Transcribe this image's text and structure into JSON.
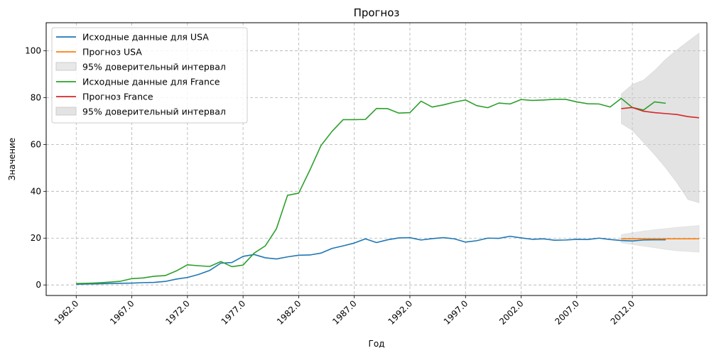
{
  "chart_data": {
    "type": "line",
    "title": "Прогноз",
    "xlabel": "Год",
    "ylabel": "Значение",
    "xlim": [
      1959.3,
      2018.7
    ],
    "ylim": [
      -4.5,
      112
    ],
    "grid": true,
    "legend_position": "top-left",
    "x_ticks": [
      1962,
      1967,
      1972,
      1977,
      1982,
      1987,
      1992,
      1997,
      2002,
      2007,
      2012
    ],
    "x_tick_labels": [
      "1962.0",
      "1967.0",
      "1972.0",
      "1977.0",
      "1982.0",
      "1987.0",
      "1992.0",
      "1997.0",
      "2002.0",
      "2007.0",
      "2012.0"
    ],
    "y_ticks": [
      0,
      20,
      40,
      60,
      80,
      100
    ],
    "y_tick_labels": [
      "0",
      "20",
      "40",
      "60",
      "80",
      "100"
    ],
    "series": [
      {
        "name": "Исходные данные для USA",
        "kind": "line",
        "color": "#1f77b4",
        "x": [
          1962,
          1963,
          1964,
          1965,
          1966,
          1967,
          1968,
          1969,
          1970,
          1971,
          1972,
          1973,
          1974,
          1975,
          1976,
          1977,
          1978,
          1979,
          1980,
          1981,
          1982,
          1983,
          1984,
          1985,
          1986,
          1987,
          1988,
          1989,
          1990,
          1991,
          1992,
          1993,
          1994,
          1995,
          1996,
          1997,
          1998,
          1999,
          2000,
          2001,
          2002,
          2003,
          2004,
          2005,
          2006,
          2007,
          2008,
          2009,
          2010,
          2011,
          2012,
          2013,
          2014,
          2015
        ],
        "values": [
          0.3,
          0.4,
          0.5,
          0.6,
          0.7,
          0.8,
          1.0,
          1.1,
          1.5,
          2.5,
          3.2,
          4.5,
          6.2,
          9.3,
          9.6,
          12.2,
          13.0,
          11.6,
          11.1,
          12.0,
          12.7,
          12.8,
          13.6,
          15.6,
          16.7,
          17.9,
          19.7,
          18.1,
          19.3,
          20.1,
          20.2,
          19.2,
          19.8,
          20.2,
          19.7,
          18.3,
          18.9,
          20.0,
          19.9,
          20.8,
          20.1,
          19.5,
          19.7,
          19.1,
          19.2,
          19.5,
          19.4,
          20.0,
          19.4,
          19.0,
          18.8,
          19.2,
          19.3,
          19.3
        ]
      },
      {
        "name": "Прогноз USA",
        "kind": "line",
        "color": "#ff7f0e",
        "x": [
          2011,
          2012,
          2013,
          2014,
          2015,
          2016,
          2017,
          2018
        ],
        "values": [
          19.7,
          19.7,
          19.7,
          19.7,
          19.7,
          19.7,
          19.7,
          19.7
        ]
      },
      {
        "name": "95% доверительный интервал",
        "kind": "band",
        "color": "#cccccc",
        "opacity": 0.45,
        "x": [
          2011,
          2012,
          2013,
          2014,
          2015,
          2016,
          2017,
          2018
        ],
        "lower": [
          18.0,
          17.3,
          16.6,
          15.9,
          15.2,
          14.6,
          14.3,
          14.0
        ],
        "upper": [
          21.5,
          22.3,
          23.0,
          23.6,
          24.1,
          24.6,
          25.0,
          25.4
        ]
      },
      {
        "name": "Исходные данные для France",
        "kind": "line",
        "color": "#2ca02c",
        "x": [
          1962,
          1963,
          1964,
          1965,
          1966,
          1967,
          1968,
          1969,
          1970,
          1971,
          1972,
          1973,
          1974,
          1975,
          1976,
          1977,
          1978,
          1979,
          1980,
          1981,
          1982,
          1983,
          1984,
          1985,
          1986,
          1987,
          1988,
          1989,
          1990,
          1991,
          1992,
          1993,
          1994,
          1995,
          1996,
          1997,
          1998,
          1999,
          2000,
          2001,
          2002,
          2003,
          2004,
          2005,
          2006,
          2007,
          2008,
          2009,
          2010,
          2011,
          2012,
          2013,
          2014,
          2015
        ],
        "values": [
          0.6,
          0.7,
          0.9,
          1.2,
          1.6,
          2.7,
          3.0,
          3.7,
          4.0,
          6.0,
          8.6,
          8.2,
          7.9,
          10.0,
          7.8,
          8.5,
          13.6,
          16.7,
          24.0,
          38.3,
          39.2,
          49.0,
          59.5,
          65.6,
          70.6,
          70.6,
          70.7,
          75.4,
          75.3,
          73.4,
          73.6,
          78.5,
          76.0,
          76.9,
          78.1,
          79.0,
          76.6,
          75.7,
          77.7,
          77.3,
          79.2,
          78.8,
          79.0,
          79.3,
          79.3,
          78.2,
          77.4,
          77.3,
          76.0,
          79.7,
          75.8,
          74.7,
          78.2,
          77.6
        ]
      },
      {
        "name": "Прогноз France",
        "kind": "line",
        "color": "#d62728",
        "x": [
          2011,
          2012,
          2013,
          2014,
          2015,
          2016,
          2017,
          2018
        ],
        "values": [
          75.3,
          75.8,
          74.2,
          73.6,
          73.2,
          72.8,
          71.9,
          71.4
        ]
      },
      {
        "name": "95% доверительный интервал",
        "kind": "band",
        "color": "#cccccc",
        "opacity": 0.55,
        "x": [
          2011,
          2012,
          2013,
          2014,
          2015,
          2016,
          2017,
          2018
        ],
        "lower": [
          69.0,
          66.0,
          60.9,
          55.6,
          50.0,
          43.7,
          36.5,
          35.1
        ],
        "upper": [
          81.6,
          85.6,
          87.5,
          91.6,
          96.4,
          100.4,
          104.0,
          107.6
        ]
      }
    ]
  }
}
